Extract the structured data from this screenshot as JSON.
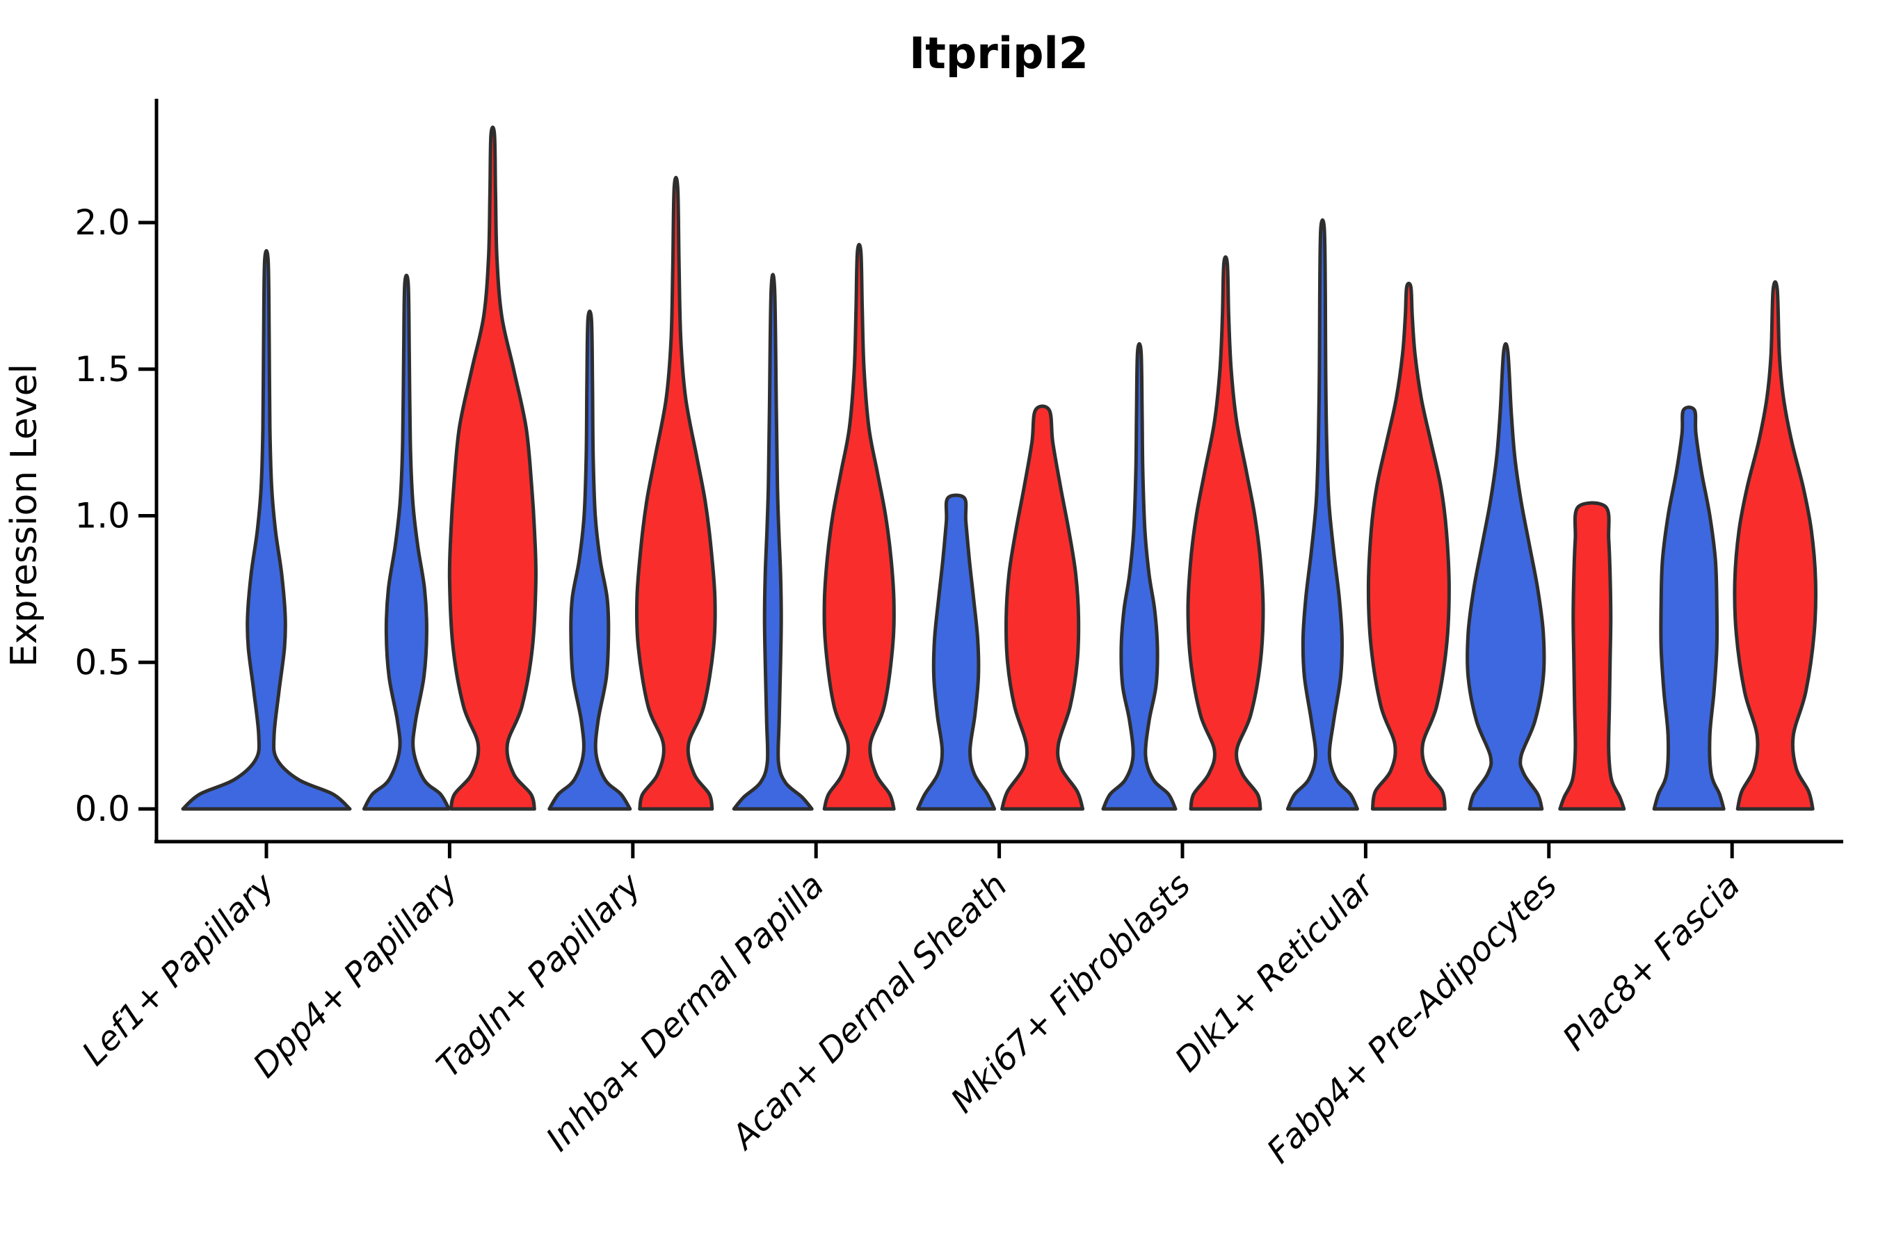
{
  "title": "Itpripl2",
  "ylabel": "Expression Level",
  "colors": {
    "blue": "#3D68E0",
    "red": "#FA2D2D",
    "outline": "#2E2E2E",
    "axis": "#000000"
  },
  "yticks": [
    "0.0",
    "0.5",
    "1.0",
    "1.5",
    "2.0"
  ],
  "categories": [
    "Lef1+ Papillary",
    "Dpp4+ Papillary",
    "Tagln+ Papillary",
    "Inhba+ Dermal Papilla",
    "Acan+ Dermal Sheath",
    "Mki67+ Fibroblasts",
    "Dlk1+ Reticular",
    "Fabp4+ Pre-Adipocytes",
    "Plac8+ Fascia"
  ],
  "chart_data": {
    "type": "violin",
    "title": "Itpripl2",
    "xlabel": "",
    "ylabel": "Expression Level",
    "ylim": [
      -0.11,
      2.42
    ],
    "ytick_values": [
      0.0,
      0.5,
      1.0,
      1.5,
      2.0
    ],
    "grid": false,
    "legend": "none",
    "categories": [
      "Lef1+ Papillary",
      "Dpp4+ Papillary",
      "Tagln+ Papillary",
      "Inhba+ Dermal Papilla",
      "Acan+ Dermal Sheath",
      "Mki67+ Fibroblasts",
      "Dlk1+ Reticular",
      "Fabp4+ Pre-Adipocytes",
      "Plac8+ Fascia"
    ],
    "violins": [
      {
        "category": 0,
        "hue": "blue",
        "single": true,
        "max": 1.87,
        "blunt": false,
        "profile": [
          [
            0,
            120
          ],
          [
            0.05,
            96
          ],
          [
            0.1,
            46
          ],
          [
            0.17,
            15
          ],
          [
            0.25,
            11
          ],
          [
            0.4,
            18
          ],
          [
            0.55,
            26
          ],
          [
            0.66,
            27
          ],
          [
            0.8,
            22
          ],
          [
            0.95,
            13
          ],
          [
            1.1,
            7.5
          ],
          [
            1.3,
            5
          ],
          [
            1.6,
            4
          ],
          [
            1.87,
            2.5
          ]
        ]
      },
      {
        "category": 1,
        "hue": "blue",
        "single": false,
        "max": 1.79,
        "blunt": false,
        "profile": [
          [
            0,
            61
          ],
          [
            0.05,
            49
          ],
          [
            0.1,
            25
          ],
          [
            0.2,
            10
          ],
          [
            0.3,
            13
          ],
          [
            0.45,
            25
          ],
          [
            0.6,
            29
          ],
          [
            0.75,
            26
          ],
          [
            0.9,
            16
          ],
          [
            1.05,
            9
          ],
          [
            1.25,
            5.5
          ],
          [
            1.55,
            4
          ],
          [
            1.79,
            2.5
          ]
        ]
      },
      {
        "category": 1,
        "hue": "red",
        "single": false,
        "max": 2.3,
        "blunt": false,
        "profile": [
          [
            0,
            60
          ],
          [
            0.05,
            55
          ],
          [
            0.12,
            30
          ],
          [
            0.22,
            21
          ],
          [
            0.35,
            42
          ],
          [
            0.55,
            57
          ],
          [
            0.78,
            62
          ],
          [
            0.95,
            60
          ],
          [
            1.1,
            56
          ],
          [
            1.3,
            48
          ],
          [
            1.5,
            30
          ],
          [
            1.68,
            13
          ],
          [
            1.88,
            6
          ],
          [
            2.1,
            4
          ],
          [
            2.3,
            2.5
          ]
        ]
      },
      {
        "category": 2,
        "hue": "blue",
        "single": false,
        "max": 1.67,
        "blunt": false,
        "profile": [
          [
            0,
            58
          ],
          [
            0.05,
            45
          ],
          [
            0.1,
            22
          ],
          [
            0.19,
            9
          ],
          [
            0.3,
            12
          ],
          [
            0.45,
            24
          ],
          [
            0.6,
            27
          ],
          [
            0.72,
            25
          ],
          [
            0.85,
            15
          ],
          [
            1.0,
            8
          ],
          [
            1.2,
            5
          ],
          [
            1.45,
            4
          ],
          [
            1.67,
            2.5
          ]
        ]
      },
      {
        "category": 2,
        "hue": "red",
        "single": false,
        "max": 2.12,
        "blunt": false,
        "profile": [
          [
            0,
            52
          ],
          [
            0.05,
            48
          ],
          [
            0.12,
            26
          ],
          [
            0.22,
            18
          ],
          [
            0.35,
            40
          ],
          [
            0.55,
            54
          ],
          [
            0.72,
            56
          ],
          [
            0.9,
            50
          ],
          [
            1.05,
            42
          ],
          [
            1.2,
            30
          ],
          [
            1.4,
            14
          ],
          [
            1.6,
            7
          ],
          [
            1.85,
            4.5
          ],
          [
            2.12,
            2.5
          ]
        ]
      },
      {
        "category": 3,
        "hue": "blue",
        "single": false,
        "max": 1.77,
        "blunt": false,
        "profile": [
          [
            0,
            56
          ],
          [
            0.04,
            42
          ],
          [
            0.09,
            18
          ],
          [
            0.16,
            8
          ],
          [
            0.3,
            9
          ],
          [
            0.5,
            11
          ],
          [
            0.65,
            12
          ],
          [
            0.8,
            11
          ],
          [
            0.95,
            8.5
          ],
          [
            1.1,
            6.5
          ],
          [
            1.35,
            5
          ],
          [
            1.77,
            2.5
          ]
        ]
      },
      {
        "category": 3,
        "hue": "red",
        "single": false,
        "max": 1.9,
        "blunt": false,
        "profile": [
          [
            0,
            50
          ],
          [
            0.05,
            44
          ],
          [
            0.12,
            24
          ],
          [
            0.22,
            16
          ],
          [
            0.35,
            36
          ],
          [
            0.55,
            48
          ],
          [
            0.7,
            50
          ],
          [
            0.85,
            46
          ],
          [
            1.0,
            38
          ],
          [
            1.15,
            26
          ],
          [
            1.3,
            14
          ],
          [
            1.5,
            7
          ],
          [
            1.7,
            4.5
          ],
          [
            1.9,
            2.5
          ]
        ]
      },
      {
        "category": 4,
        "hue": "blue",
        "single": false,
        "max": 1.06,
        "blunt": true,
        "profile": [
          [
            0,
            55
          ],
          [
            0.05,
            45
          ],
          [
            0.12,
            26
          ],
          [
            0.2,
            20
          ],
          [
            0.32,
            27
          ],
          [
            0.45,
            32
          ],
          [
            0.58,
            31
          ],
          [
            0.72,
            25
          ],
          [
            0.85,
            19
          ],
          [
            0.98,
            14
          ],
          [
            1.06,
            12
          ]
        ]
      },
      {
        "category": 4,
        "hue": "red",
        "single": false,
        "max": 1.36,
        "blunt": true,
        "profile": [
          [
            0,
            58
          ],
          [
            0.06,
            50
          ],
          [
            0.14,
            27
          ],
          [
            0.22,
            23
          ],
          [
            0.35,
            40
          ],
          [
            0.5,
            50
          ],
          [
            0.65,
            52
          ],
          [
            0.8,
            48
          ],
          [
            0.95,
            38
          ],
          [
            1.1,
            26
          ],
          [
            1.25,
            15
          ],
          [
            1.36,
            10
          ]
        ]
      },
      {
        "category": 5,
        "hue": "blue",
        "single": false,
        "max": 1.56,
        "blunt": false,
        "profile": [
          [
            0,
            52
          ],
          [
            0.05,
            42
          ],
          [
            0.1,
            20
          ],
          [
            0.18,
            9
          ],
          [
            0.3,
            14
          ],
          [
            0.42,
            24
          ],
          [
            0.55,
            26
          ],
          [
            0.68,
            22
          ],
          [
            0.8,
            14
          ],
          [
            0.95,
            8
          ],
          [
            1.15,
            5
          ],
          [
            1.35,
            4
          ],
          [
            1.56,
            2.5
          ]
        ]
      },
      {
        "category": 5,
        "hue": "red",
        "single": false,
        "max": 1.86,
        "blunt": false,
        "profile": [
          [
            0,
            50
          ],
          [
            0.05,
            46
          ],
          [
            0.12,
            24
          ],
          [
            0.2,
            16
          ],
          [
            0.32,
            36
          ],
          [
            0.5,
            50
          ],
          [
            0.68,
            54
          ],
          [
            0.85,
            50
          ],
          [
            1.0,
            42
          ],
          [
            1.15,
            30
          ],
          [
            1.32,
            16
          ],
          [
            1.5,
            8
          ],
          [
            1.68,
            4.5
          ],
          [
            1.86,
            2.5
          ]
        ]
      },
      {
        "category": 6,
        "hue": "blue",
        "single": false,
        "max": 1.98,
        "blunt": false,
        "profile": [
          [
            0,
            50
          ],
          [
            0.05,
            40
          ],
          [
            0.1,
            20
          ],
          [
            0.18,
            10
          ],
          [
            0.3,
            16
          ],
          [
            0.45,
            26
          ],
          [
            0.58,
            28
          ],
          [
            0.72,
            24
          ],
          [
            0.88,
            16
          ],
          [
            1.05,
            9
          ],
          [
            1.25,
            6
          ],
          [
            1.5,
            4.5
          ],
          [
            1.75,
            4
          ],
          [
            1.98,
            2.5
          ]
        ]
      },
      {
        "category": 6,
        "hue": "red",
        "single": false,
        "max": 1.78,
        "blunt": false,
        "profile": [
          [
            0,
            52
          ],
          [
            0.06,
            48
          ],
          [
            0.13,
            26
          ],
          [
            0.22,
            20
          ],
          [
            0.35,
            40
          ],
          [
            0.55,
            54
          ],
          [
            0.75,
            58
          ],
          [
            0.95,
            54
          ],
          [
            1.1,
            46
          ],
          [
            1.25,
            32
          ],
          [
            1.4,
            18
          ],
          [
            1.55,
            9
          ],
          [
            1.68,
            5
          ],
          [
            1.78,
            3
          ]
        ]
      },
      {
        "category": 7,
        "hue": "blue",
        "single": false,
        "max": 1.56,
        "blunt": false,
        "profile": [
          [
            0,
            52
          ],
          [
            0.05,
            46
          ],
          [
            0.12,
            26
          ],
          [
            0.18,
            22
          ],
          [
            0.3,
            42
          ],
          [
            0.45,
            54
          ],
          [
            0.6,
            54
          ],
          [
            0.75,
            46
          ],
          [
            0.9,
            34
          ],
          [
            1.05,
            22
          ],
          [
            1.2,
            13
          ],
          [
            1.35,
            8
          ],
          [
            1.56,
            3
          ]
        ]
      },
      {
        "category": 7,
        "hue": "red",
        "single": false,
        "max": 1.03,
        "blunt": true,
        "profile": [
          [
            0,
            46
          ],
          [
            0.04,
            40
          ],
          [
            0.1,
            28
          ],
          [
            0.2,
            24
          ],
          [
            0.35,
            25
          ],
          [
            0.5,
            26
          ],
          [
            0.65,
            27
          ],
          [
            0.8,
            26
          ],
          [
            0.92,
            24
          ],
          [
            1.03,
            20
          ]
        ]
      },
      {
        "category": 8,
        "hue": "blue",
        "single": false,
        "max": 1.36,
        "blunt": true,
        "profile": [
          [
            0,
            50
          ],
          [
            0.05,
            44
          ],
          [
            0.12,
            32
          ],
          [
            0.25,
            30
          ],
          [
            0.4,
            36
          ],
          [
            0.55,
            40
          ],
          [
            0.7,
            40
          ],
          [
            0.85,
            38
          ],
          [
            1.0,
            30
          ],
          [
            1.15,
            18
          ],
          [
            1.28,
            10
          ],
          [
            1.36,
            8
          ]
        ]
      },
      {
        "category": 8,
        "hue": "red",
        "single": false,
        "max": 1.77,
        "blunt": false,
        "profile": [
          [
            0,
            54
          ],
          [
            0.06,
            48
          ],
          [
            0.14,
            30
          ],
          [
            0.25,
            26
          ],
          [
            0.4,
            44
          ],
          [
            0.6,
            56
          ],
          [
            0.78,
            58
          ],
          [
            0.95,
            52
          ],
          [
            1.1,
            40
          ],
          [
            1.25,
            24
          ],
          [
            1.4,
            12
          ],
          [
            1.55,
            6
          ],
          [
            1.77,
            3
          ]
        ]
      }
    ]
  }
}
